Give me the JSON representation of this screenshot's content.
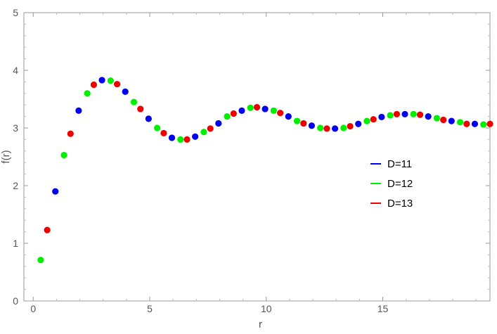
{
  "chart_data": {
    "type": "scatter",
    "title": "",
    "xlabel": "r",
    "ylabel": "f(r)",
    "xlim": [
      -0.4,
      19.6
    ],
    "ylim": [
      0,
      5
    ],
    "x_ticks": [
      0,
      5,
      10,
      15
    ],
    "y_ticks": [
      0,
      1,
      2,
      3,
      4,
      5
    ],
    "x_tick_labels": [
      "0",
      "5",
      "10",
      "15"
    ],
    "y_tick_labels": [
      "0",
      "1",
      "2",
      "3",
      "4",
      "5"
    ],
    "grid": false,
    "legend_position": "right-middle",
    "series": [
      {
        "name": "D=11",
        "color": "#0000ee",
        "points": [
          [
            0.95,
            1.9
          ],
          [
            1.95,
            3.3
          ],
          [
            2.95,
            3.83
          ],
          [
            3.95,
            3.63
          ],
          [
            4.95,
            3.16
          ],
          [
            5.95,
            2.83
          ],
          [
            6.95,
            2.85
          ],
          [
            7.95,
            3.08
          ],
          [
            8.95,
            3.3
          ],
          [
            9.95,
            3.33
          ],
          [
            10.95,
            3.2
          ],
          [
            11.95,
            3.04
          ],
          [
            12.95,
            2.99
          ],
          [
            13.95,
            3.07
          ],
          [
            14.95,
            3.19
          ],
          [
            15.95,
            3.24
          ],
          [
            16.95,
            3.2
          ],
          [
            17.95,
            3.12
          ],
          [
            18.95,
            3.07
          ]
        ]
      },
      {
        "name": "D=12",
        "color": "#00ee00",
        "points": [
          [
            0.32,
            0.71
          ],
          [
            1.32,
            2.53
          ],
          [
            2.32,
            3.6
          ],
          [
            3.32,
            3.82
          ],
          [
            4.32,
            3.45
          ],
          [
            5.32,
            3.0
          ],
          [
            6.32,
            2.8
          ],
          [
            7.32,
            2.93
          ],
          [
            8.32,
            3.2
          ],
          [
            9.32,
            3.35
          ],
          [
            10.32,
            3.3
          ],
          [
            11.32,
            3.12
          ],
          [
            12.32,
            3.0
          ],
          [
            13.32,
            3.0
          ],
          [
            14.32,
            3.12
          ],
          [
            15.32,
            3.22
          ],
          [
            16.32,
            3.24
          ],
          [
            17.32,
            3.17
          ],
          [
            18.32,
            3.1
          ],
          [
            19.32,
            3.06
          ]
        ]
      },
      {
        "name": "D=13",
        "color": "#ee0000",
        "points": [
          [
            0.6,
            1.23
          ],
          [
            1.6,
            2.9
          ],
          [
            2.6,
            3.75
          ],
          [
            3.6,
            3.76
          ],
          [
            4.6,
            3.33
          ],
          [
            5.6,
            2.91
          ],
          [
            6.6,
            2.8
          ],
          [
            7.6,
            2.99
          ],
          [
            8.6,
            3.25
          ],
          [
            9.6,
            3.36
          ],
          [
            10.6,
            3.26
          ],
          [
            11.6,
            3.08
          ],
          [
            12.6,
            2.99
          ],
          [
            13.6,
            3.03
          ],
          [
            14.6,
            3.15
          ],
          [
            15.6,
            3.24
          ],
          [
            16.6,
            3.23
          ],
          [
            17.6,
            3.14
          ],
          [
            18.6,
            3.07
          ],
          [
            19.6,
            3.07
          ]
        ]
      }
    ]
  }
}
